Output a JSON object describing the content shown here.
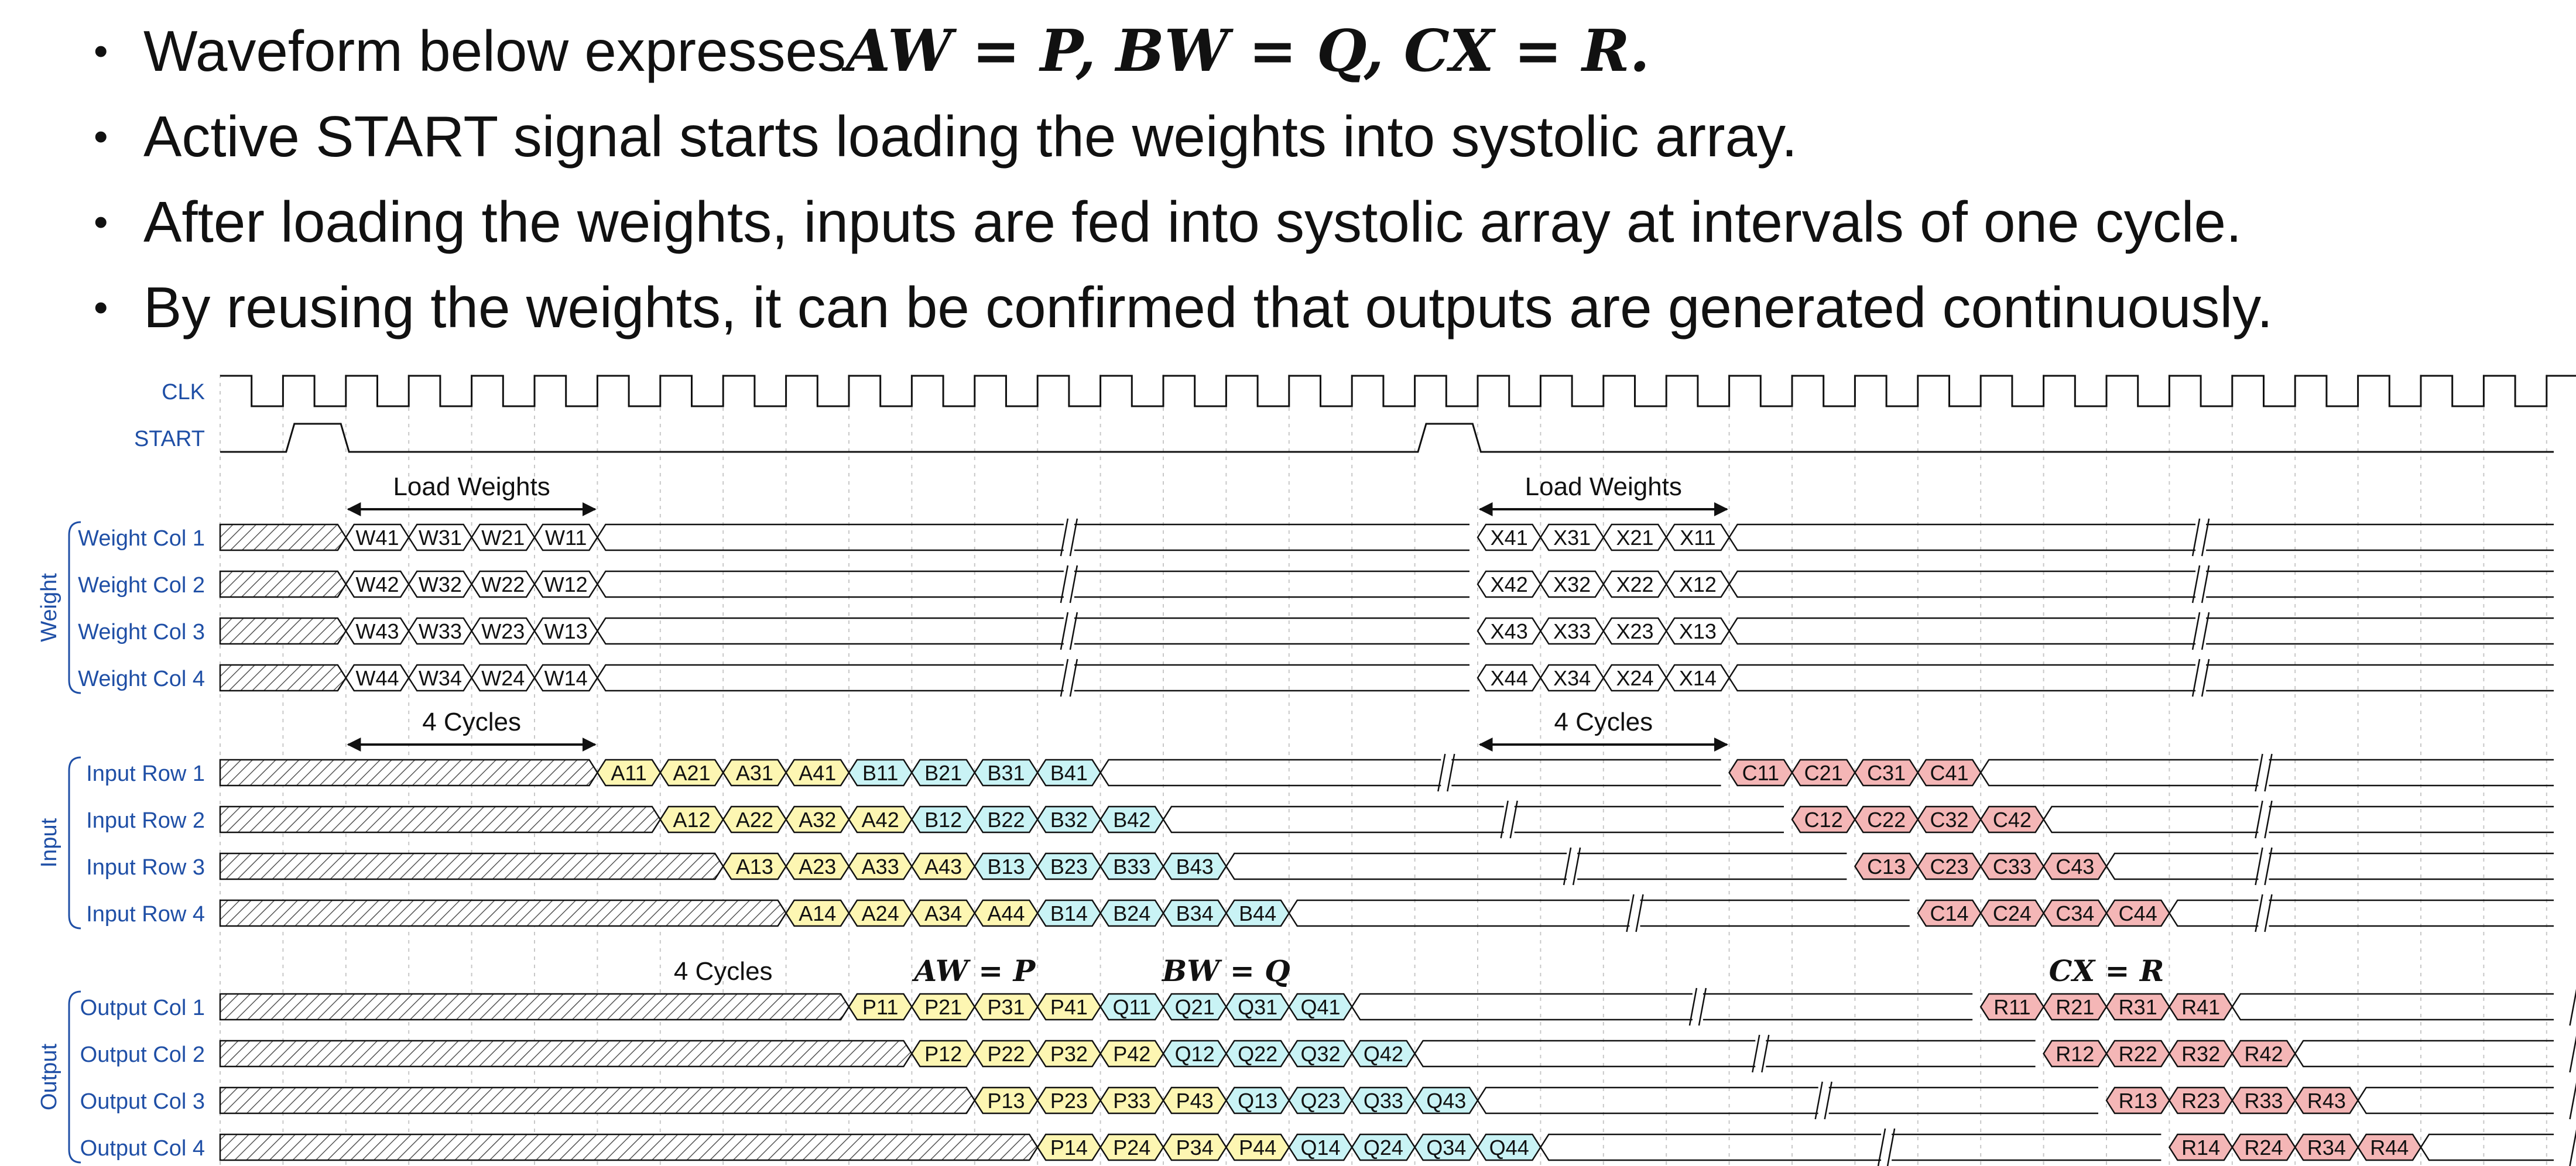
{
  "bullets": [
    {
      "text": "Waveform below expresses ",
      "math": "AW = P, BW = Q, CX = R."
    },
    {
      "text": "Active START signal starts loading the weights into systolic array.",
      "math": ""
    },
    {
      "text": "After loading the weights, inputs are fed into systolic array at intervals of one cycle.",
      "math": ""
    },
    {
      "text": "By reusing the weights, it can be confirmed that outputs are generated continuously.",
      "math": ""
    }
  ],
  "bullet_symbol": "•",
  "clock": {
    "label": "CLK",
    "cycles": 38
  },
  "start": {
    "label": "START",
    "pulse_cycles": [
      1,
      19
    ]
  },
  "groups": [
    {
      "label": "Weight",
      "rows": [
        0,
        1,
        2,
        3
      ]
    },
    {
      "label": "Input",
      "rows": [
        4,
        5,
        6,
        7
      ]
    },
    {
      "label": "Output",
      "rows": [
        8,
        9,
        10,
        11
      ]
    }
  ],
  "rows": [
    {
      "label": "Weight Col 1",
      "hatch_end": 2,
      "segments": [
        {
          "start": 2,
          "vals": [
            "W41",
            "W31",
            "W21",
            "W11"
          ],
          "color": "none"
        },
        {
          "start": 20,
          "vals": [
            "X41",
            "X31",
            "X21",
            "X11"
          ],
          "color": "none"
        }
      ],
      "breaks": [
        13.5,
        31.5
      ]
    },
    {
      "label": "Weight Col 2",
      "hatch_end": 2,
      "segments": [
        {
          "start": 2,
          "vals": [
            "W42",
            "W32",
            "W22",
            "W12"
          ],
          "color": "none"
        },
        {
          "start": 20,
          "vals": [
            "X42",
            "X32",
            "X22",
            "X12"
          ],
          "color": "none"
        }
      ],
      "breaks": [
        13.5,
        31.5
      ]
    },
    {
      "label": "Weight Col 3",
      "hatch_end": 2,
      "segments": [
        {
          "start": 2,
          "vals": [
            "W43",
            "W33",
            "W23",
            "W13"
          ],
          "color": "none"
        },
        {
          "start": 20,
          "vals": [
            "X43",
            "X33",
            "X23",
            "X13"
          ],
          "color": "none"
        }
      ],
      "breaks": [
        13.5,
        31.5
      ]
    },
    {
      "label": "Weight Col 4",
      "hatch_end": 2,
      "segments": [
        {
          "start": 2,
          "vals": [
            "W44",
            "W34",
            "W24",
            "W14"
          ],
          "color": "none"
        },
        {
          "start": 20,
          "vals": [
            "X44",
            "X34",
            "X24",
            "X14"
          ],
          "color": "none"
        }
      ],
      "breaks": [
        13.5,
        31.5
      ]
    },
    {
      "label": "Input Row 1",
      "hatch_end": 6,
      "segments": [
        {
          "start": 6,
          "vals": [
            "A11",
            "A21",
            "A31",
            "A41"
          ],
          "color": "yellow"
        },
        {
          "start": 10,
          "vals": [
            "B11",
            "B21",
            "B31",
            "B41"
          ],
          "color": "cyan"
        },
        {
          "start": 24,
          "vals": [
            "C11",
            "C21",
            "C31",
            "C41"
          ],
          "color": "red"
        }
      ],
      "breaks": [
        19.5,
        32.5
      ]
    },
    {
      "label": "Input Row 2",
      "hatch_end": 7,
      "segments": [
        {
          "start": 7,
          "vals": [
            "A12",
            "A22",
            "A32",
            "A42"
          ],
          "color": "yellow"
        },
        {
          "start": 11,
          "vals": [
            "B12",
            "B22",
            "B32",
            "B42"
          ],
          "color": "cyan"
        },
        {
          "start": 25,
          "vals": [
            "C12",
            "C22",
            "C32",
            "C42"
          ],
          "color": "red"
        }
      ],
      "breaks": [
        20.5,
        32.5
      ]
    },
    {
      "label": "Input Row 3",
      "hatch_end": 8,
      "segments": [
        {
          "start": 8,
          "vals": [
            "A13",
            "A23",
            "A33",
            "A43"
          ],
          "color": "yellow"
        },
        {
          "start": 12,
          "vals": [
            "B13",
            "B23",
            "B33",
            "B43"
          ],
          "color": "cyan"
        },
        {
          "start": 26,
          "vals": [
            "C13",
            "C23",
            "C33",
            "C43"
          ],
          "color": "red"
        }
      ],
      "breaks": [
        21.5,
        32.5
      ]
    },
    {
      "label": "Input Row 4",
      "hatch_end": 9,
      "segments": [
        {
          "start": 9,
          "vals": [
            "A14",
            "A24",
            "A34",
            "A44"
          ],
          "color": "yellow"
        },
        {
          "start": 13,
          "vals": [
            "B14",
            "B24",
            "B34",
            "B44"
          ],
          "color": "cyan"
        },
        {
          "start": 27,
          "vals": [
            "C14",
            "C24",
            "C34",
            "C44"
          ],
          "color": "red"
        }
      ],
      "breaks": [
        22.5,
        32.5
      ]
    },
    {
      "label": "Output Col 1",
      "hatch_end": 10,
      "segments": [
        {
          "start": 10,
          "vals": [
            "P11",
            "P21",
            "P31",
            "P41"
          ],
          "color": "yellow"
        },
        {
          "start": 14,
          "vals": [
            "Q11",
            "Q21",
            "Q31",
            "Q41"
          ],
          "color": "cyan"
        },
        {
          "start": 28,
          "vals": [
            "R11",
            "R21",
            "R31",
            "R41"
          ],
          "color": "red"
        }
      ],
      "breaks": [
        23.5,
        37.5
      ]
    },
    {
      "label": "Output Col 2",
      "hatch_end": 11,
      "segments": [
        {
          "start": 11,
          "vals": [
            "P12",
            "P22",
            "P32",
            "P42"
          ],
          "color": "yellow"
        },
        {
          "start": 15,
          "vals": [
            "Q12",
            "Q22",
            "Q32",
            "Q42"
          ],
          "color": "cyan"
        },
        {
          "start": 29,
          "vals": [
            "R12",
            "R22",
            "R32",
            "R42"
          ],
          "color": "red"
        }
      ],
      "breaks": [
        24.5,
        37.5
      ]
    },
    {
      "label": "Output Col 3",
      "hatch_end": 12,
      "segments": [
        {
          "start": 12,
          "vals": [
            "P13",
            "P23",
            "P33",
            "P43"
          ],
          "color": "yellow"
        },
        {
          "start": 16,
          "vals": [
            "Q13",
            "Q23",
            "Q33",
            "Q43"
          ],
          "color": "cyan"
        },
        {
          "start": 30,
          "vals": [
            "R13",
            "R23",
            "R33",
            "R43"
          ],
          "color": "red"
        }
      ],
      "breaks": [
        25.5,
        37.5
      ]
    },
    {
      "label": "Output Col 4",
      "hatch_end": 13,
      "segments": [
        {
          "start": 13,
          "vals": [
            "P14",
            "P24",
            "P34",
            "P44"
          ],
          "color": "yellow"
        },
        {
          "start": 17,
          "vals": [
            "Q14",
            "Q24",
            "Q34",
            "Q44"
          ],
          "color": "cyan"
        },
        {
          "start": 31,
          "vals": [
            "R14",
            "R24",
            "R34",
            "R44"
          ],
          "color": "red"
        }
      ],
      "breaks": [
        26.5,
        37.5
      ]
    }
  ],
  "annotations": [
    {
      "text": "Load Weights",
      "from": 2,
      "to": 6,
      "above_row": 0,
      "arrow": true
    },
    {
      "text": "Load Weights",
      "from": 20,
      "to": 24,
      "above_row": 0,
      "arrow": true
    },
    {
      "text": "4 Cycles",
      "from": 2,
      "to": 6,
      "above_row": 4,
      "arrow": true
    },
    {
      "text": "4 Cycles",
      "from": 20,
      "to": 24,
      "above_row": 4,
      "arrow": true
    },
    {
      "text": "4 Cycles",
      "from": 6,
      "to": 10,
      "above_row": 8,
      "arrow": false
    }
  ],
  "equations": [
    {
      "text": "AW = P",
      "cycle": 12,
      "above_row": 8
    },
    {
      "text": "BW = Q",
      "cycle": 16,
      "above_row": 8
    },
    {
      "text": "CX = R",
      "cycle": 30,
      "above_row": 8
    }
  ],
  "colors": {
    "yellow": "#fdf6b2",
    "cyan": "#c9f3f5",
    "red": "#f4b6b6",
    "none": "#ffffff",
    "label": "#1f4fa6",
    "line": "#111111",
    "grid": "#c8c8c8"
  }
}
